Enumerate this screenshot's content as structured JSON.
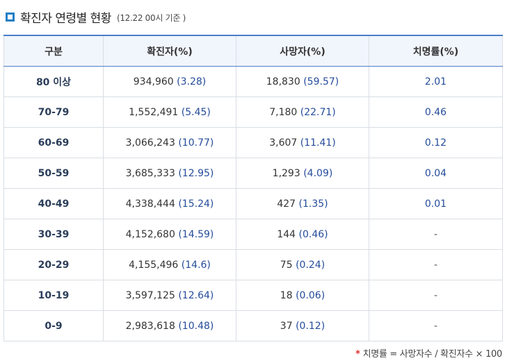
{
  "heading": {
    "title": "확진자 연령별 현황",
    "subtitle": "(12.22 00시 기준 )"
  },
  "table": {
    "columns": [
      "구분",
      "확진자(%)",
      "사망자(%)",
      "치명률(%)"
    ],
    "rows": [
      {
        "age": "80 이상",
        "cases": "934,960",
        "cases_pct": "(3.28)",
        "deaths": "18,830",
        "deaths_pct": "(59.57)",
        "fatality": "2.01"
      },
      {
        "age": "70-79",
        "cases": "1,552,491",
        "cases_pct": "(5.45)",
        "deaths": "7,180",
        "deaths_pct": "(22.71)",
        "fatality": "0.46"
      },
      {
        "age": "60-69",
        "cases": "3,066,243",
        "cases_pct": "(10.77)",
        "deaths": "3,607",
        "deaths_pct": "(11.41)",
        "fatality": "0.12"
      },
      {
        "age": "50-59",
        "cases": "3,685,333",
        "cases_pct": "(12.95)",
        "deaths": "1,293",
        "deaths_pct": "(4.09)",
        "fatality": "0.04"
      },
      {
        "age": "40-49",
        "cases": "4,338,444",
        "cases_pct": "(15.24)",
        "deaths": "427",
        "deaths_pct": "(1.35)",
        "fatality": "0.01"
      },
      {
        "age": "30-39",
        "cases": "4,152,680",
        "cases_pct": "(14.59)",
        "deaths": "144",
        "deaths_pct": "(0.46)",
        "fatality": "-"
      },
      {
        "age": "20-29",
        "cases": "4,155,496",
        "cases_pct": "(14.6)",
        "deaths": "75",
        "deaths_pct": "(0.24)",
        "fatality": "-"
      },
      {
        "age": "10-19",
        "cases": "3,597,125",
        "cases_pct": "(12.64)",
        "deaths": "18",
        "deaths_pct": "(0.06)",
        "fatality": "-"
      },
      {
        "age": "0-9",
        "cases": "2,983,618",
        "cases_pct": "(10.48)",
        "deaths": "37",
        "deaths_pct": "(0.12)",
        "fatality": "-"
      }
    ]
  },
  "footnote": {
    "marker": "*",
    "text": "치명률 = 사망자수 / 확진자수 × 100"
  },
  "colors": {
    "accent_blue": "#1f7fc4",
    "header_border": "#4b7fc9",
    "header_bg": "#f1f5fc",
    "percent_text": "#244c9a",
    "footnote_star": "#e03030"
  }
}
